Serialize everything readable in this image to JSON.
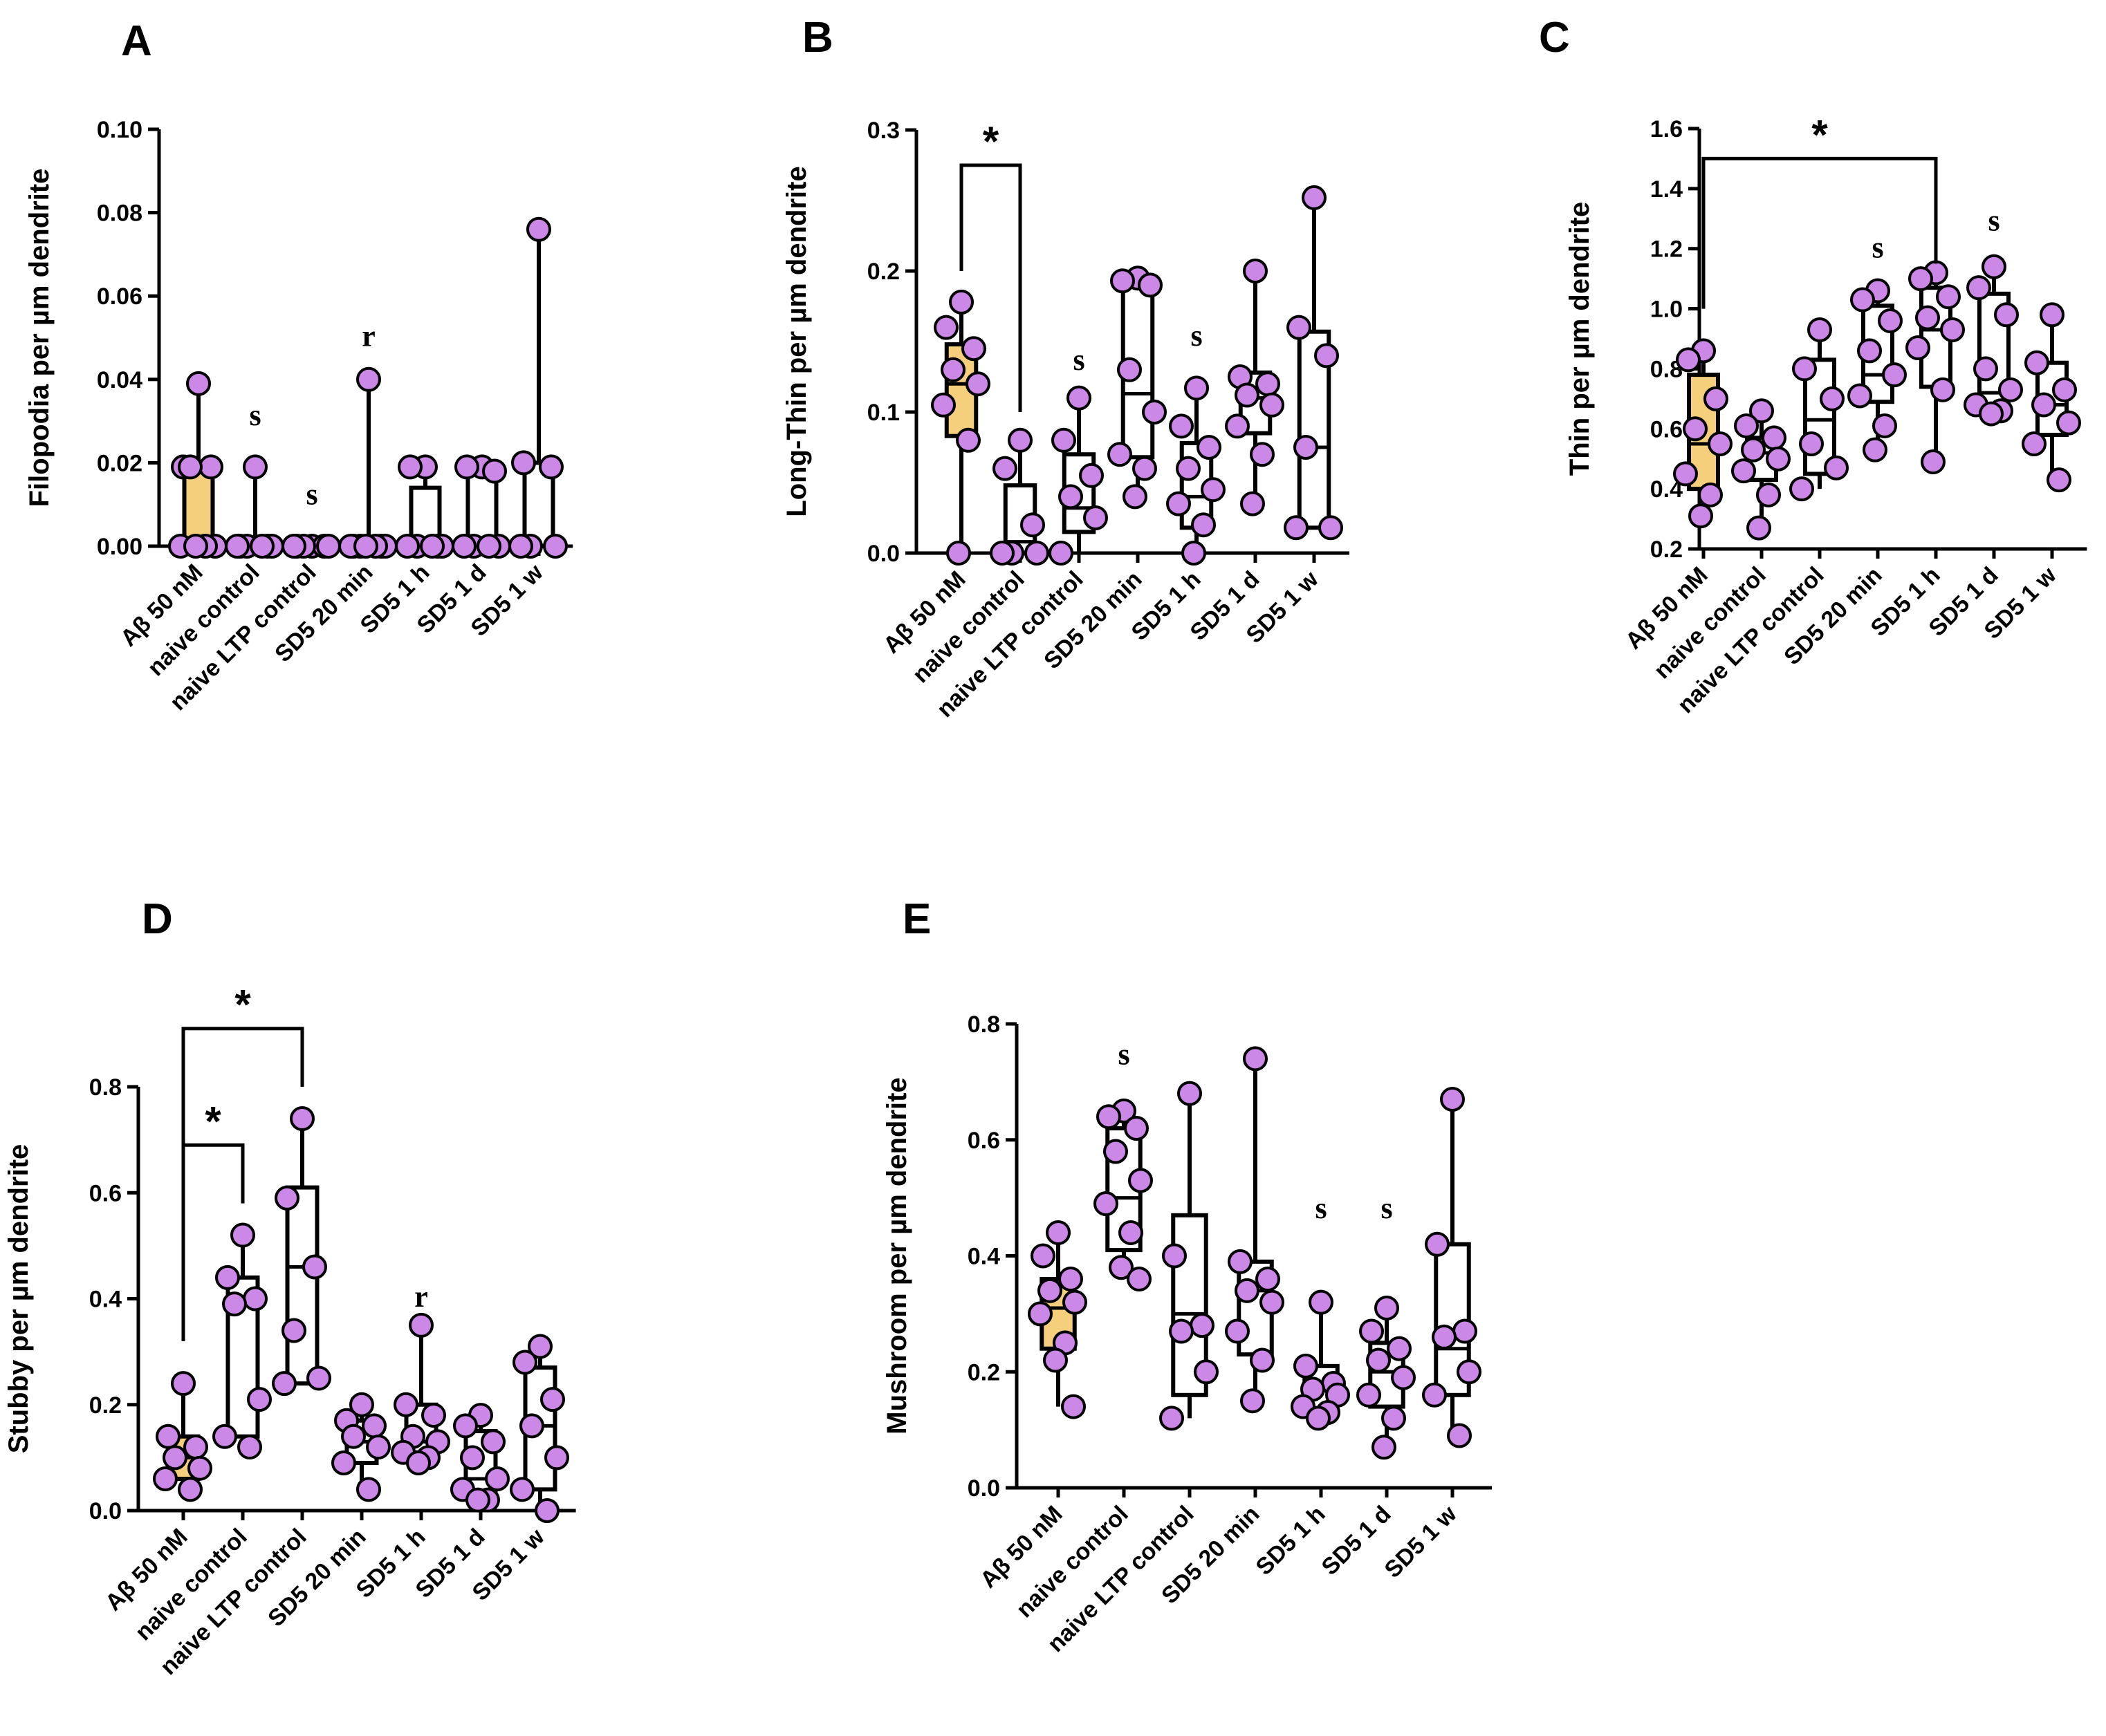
{
  "colors": {
    "highlight_box": "#f6cf7c",
    "box": "#ffffff",
    "dot_fill": "#cc88e6",
    "stroke": "#000000"
  },
  "chart_data": [
    {
      "panel": "A",
      "type": "box",
      "ylabel": "Filopodia per µm dendrite",
      "ylim": [
        0.0,
        0.1
      ],
      "yticks": [
        "0.00",
        "0.02",
        "0.04",
        "0.06",
        "0.08",
        "0.10"
      ],
      "categories": [
        "Aβ 50 nM",
        "naive control",
        "naive LTP control",
        "SD5 20 min",
        "SD5 1 h",
        "SD5 1 d",
        "SD5 1 w"
      ],
      "boxes": [
        {
          "min": 0,
          "q1": 0,
          "median": 0,
          "q3": 0.019,
          "max": 0.039
        },
        {
          "min": 0,
          "q1": 0,
          "median": 0,
          "q3": 0,
          "max": 0.019
        },
        {
          "min": 0,
          "q1": 0,
          "median": 0,
          "q3": 0,
          "max": 0
        },
        {
          "min": 0,
          "q1": 0,
          "median": 0,
          "q3": 0,
          "max": 0.04
        },
        {
          "min": 0,
          "q1": 0,
          "median": 0,
          "q3": 0.014,
          "max": 0.019
        },
        {
          "min": 0,
          "q1": 0,
          "median": 0,
          "q3": 0.018,
          "max": 0.019
        },
        {
          "min": 0,
          "q1": 0,
          "median": 0,
          "q3": 0.02,
          "max": 0.076
        }
      ],
      "points": [
        [
          0.039,
          0.019,
          0.019,
          0.019,
          0,
          0,
          0,
          0
        ],
        [
          0.019,
          0,
          0,
          0,
          0,
          0,
          0
        ],
        [
          0,
          0,
          0,
          0,
          0,
          0
        ],
        [
          0.04,
          0,
          0,
          0,
          0,
          0,
          0,
          0
        ],
        [
          0.019,
          0.019,
          0,
          0,
          0,
          0,
          0
        ],
        [
          0.019,
          0.019,
          0.018,
          0,
          0,
          0,
          0
        ],
        [
          0.076,
          0.02,
          0.019,
          0,
          0,
          0
        ]
      ],
      "annotations": [
        {
          "category": 1,
          "text": "s",
          "y": 0.029
        },
        {
          "category": 2,
          "text": "s",
          "y": 0.01
        },
        {
          "category": 3,
          "text": "r",
          "y": 0.048
        }
      ],
      "brackets": []
    },
    {
      "panel": "B",
      "type": "box",
      "ylabel": "Long-Thin per µm dendrite",
      "ylim": [
        0.0,
        0.3
      ],
      "yticks": [
        "0.0",
        "0.1",
        "0.2",
        "0.3"
      ],
      "categories": [
        "Aβ 50 nM",
        "naive control",
        "naive LTP control",
        "SD5 20 min",
        "SD5 1 h",
        "SD5 1 d",
        "SD5 1 w"
      ],
      "boxes": [
        {
          "min": 0,
          "q1": 0.083,
          "median": 0.12,
          "q3": 0.148,
          "max": 0.178
        },
        {
          "min": 0,
          "q1": 0,
          "median": 0.008,
          "q3": 0.048,
          "max": 0.08
        },
        {
          "min": 0,
          "q1": 0.015,
          "median": 0.032,
          "q3": 0.07,
          "max": 0.11
        },
        {
          "min": 0.04,
          "q1": 0.068,
          "median": 0.113,
          "q3": 0.192,
          "max": 0.195
        },
        {
          "min": 0,
          "q1": 0.018,
          "median": 0.04,
          "q3": 0.078,
          "max": 0.117
        },
        {
          "min": 0.035,
          "q1": 0.085,
          "median": 0.11,
          "q3": 0.128,
          "max": 0.2
        },
        {
          "min": 0.018,
          "q1": 0.018,
          "median": 0.075,
          "q3": 0.157,
          "max": 0.252
        }
      ],
      "points": [
        [
          0.178,
          0.16,
          0.145,
          0.13,
          0.12,
          0.105,
          0.08,
          0
        ],
        [
          0.08,
          0.06,
          0.02,
          0,
          0,
          0
        ],
        [
          0.11,
          0.08,
          0.055,
          0.04,
          0.025,
          0
        ],
        [
          0.195,
          0.193,
          0.19,
          0.13,
          0.1,
          0.07,
          0.06,
          0.04
        ],
        [
          0.117,
          0.09,
          0.075,
          0.06,
          0.045,
          0.035,
          0.02,
          0
        ],
        [
          0.2,
          0.125,
          0.12,
          0.112,
          0.105,
          0.09,
          0.07,
          0.035
        ],
        [
          0.252,
          0.16,
          0.14,
          0.075,
          0.018,
          0.018
        ]
      ],
      "annotations": [
        {
          "category": 2,
          "text": "s",
          "y": 0.13
        },
        {
          "category": 4,
          "text": "s",
          "y": 0.147
        }
      ],
      "brackets": [
        {
          "from": 0,
          "to": 1,
          "y": 0.275,
          "left_end": 0.2,
          "right_end": 0.1,
          "text": "*"
        }
      ]
    },
    {
      "panel": "C",
      "type": "box",
      "ylabel": "Thin per µm dendrite",
      "ylim": [
        0.2,
        1.6
      ],
      "yticks": [
        "0.2",
        "0.4",
        "0.6",
        "0.8",
        "1.0",
        "1.2",
        "1.4",
        "1.6"
      ],
      "categories": [
        "Aβ 50 nM",
        "naive control",
        "naive LTP control",
        "SD5 20 min",
        "SD5 1 h",
        "SD5 1 d",
        "SD5 1 w"
      ],
      "boxes": [
        {
          "min": 0.31,
          "q1": 0.4,
          "median": 0.55,
          "q3": 0.78,
          "max": 0.86
        },
        {
          "min": 0.27,
          "q1": 0.43,
          "median": 0.52,
          "q3": 0.57,
          "max": 0.66
        },
        {
          "min": 0.4,
          "q1": 0.45,
          "median": 0.63,
          "q3": 0.83,
          "max": 0.93
        },
        {
          "min": 0.53,
          "q1": 0.69,
          "median": 0.78,
          "q3": 1.01,
          "max": 1.06
        },
        {
          "min": 0.49,
          "q1": 0.74,
          "median": 0.93,
          "q3": 1.07,
          "max": 1.12
        },
        {
          "min": 0.65,
          "q1": 0.66,
          "median": 0.72,
          "q3": 1.05,
          "max": 1.14
        },
        {
          "min": 0.43,
          "q1": 0.58,
          "median": 0.68,
          "q3": 0.82,
          "max": 0.98
        }
      ],
      "points": [
        [
          0.86,
          0.83,
          0.7,
          0.6,
          0.55,
          0.45,
          0.38,
          0.31
        ],
        [
          0.66,
          0.61,
          0.57,
          0.53,
          0.5,
          0.46,
          0.38,
          0.27
        ],
        [
          0.93,
          0.8,
          0.7,
          0.55,
          0.47,
          0.4
        ],
        [
          1.06,
          1.03,
          0.96,
          0.86,
          0.78,
          0.71,
          0.61,
          0.53
        ],
        [
          1.12,
          1.1,
          1.04,
          0.97,
          0.93,
          0.87,
          0.73,
          0.49
        ],
        [
          1.14,
          1.07,
          0.98,
          0.8,
          0.73,
          0.68,
          0.66,
          0.65
        ],
        [
          0.98,
          0.82,
          0.73,
          0.68,
          0.62,
          0.55,
          0.43
        ]
      ],
      "annotations": [
        {
          "category": 3,
          "text": "s",
          "y": 1.17
        },
        {
          "category": 5,
          "text": "s",
          "y": 1.26
        }
      ],
      "brackets": [
        {
          "from": 0,
          "to": 4,
          "y": 1.5,
          "left_end": 1.0,
          "right_end": 1.15,
          "text": "*"
        }
      ]
    },
    {
      "panel": "D",
      "type": "box",
      "ylabel": "Stubby per µm dendrite",
      "ylim": [
        0.0,
        0.8
      ],
      "yticks": [
        "0.0",
        "0.2",
        "0.4",
        "0.6",
        "0.8"
      ],
      "categories": [
        "Aβ 50 nM",
        "naive control",
        "naive LTP control",
        "SD5 20 min",
        "SD5 1 h",
        "SD5 1 d",
        "SD5 1 w"
      ],
      "boxes": [
        {
          "min": 0.04,
          "q1": 0.06,
          "median": 0.1,
          "q3": 0.14,
          "max": 0.24
        },
        {
          "min": 0.12,
          "q1": 0.14,
          "median": 0.39,
          "q3": 0.44,
          "max": 0.52
        },
        {
          "min": 0.24,
          "q1": 0.24,
          "median": 0.46,
          "q3": 0.61,
          "max": 0.74
        },
        {
          "min": 0.04,
          "q1": 0.09,
          "median": 0.13,
          "q3": 0.17,
          "max": 0.2
        },
        {
          "min": 0.09,
          "q1": 0.11,
          "median": 0.13,
          "q3": 0.2,
          "max": 0.35
        },
        {
          "min": 0.02,
          "q1": 0.03,
          "median": 0.06,
          "q3": 0.15,
          "max": 0.18
        },
        {
          "min": 0,
          "q1": 0.04,
          "median": 0.16,
          "q3": 0.27,
          "max": 0.31
        }
      ],
      "points": [
        [
          0.24,
          0.14,
          0.12,
          0.1,
          0.08,
          0.06,
          0.04
        ],
        [
          0.52,
          0.44,
          0.4,
          0.39,
          0.21,
          0.14,
          0.12
        ],
        [
          0.74,
          0.59,
          0.46,
          0.34,
          0.25,
          0.24
        ],
        [
          0.2,
          0.17,
          0.16,
          0.14,
          0.12,
          0.09,
          0.04
        ],
        [
          0.35,
          0.2,
          0.18,
          0.14,
          0.13,
          0.11,
          0.1,
          0.09
        ],
        [
          0.18,
          0.16,
          0.13,
          0.1,
          0.06,
          0.04,
          0.02,
          0.02
        ],
        [
          0.31,
          0.28,
          0.21,
          0.16,
          0.1,
          0.04,
          0
        ]
      ],
      "annotations": [
        {
          "category": 4,
          "text": "r",
          "y": 0.385
        }
      ],
      "brackets": [
        {
          "from": 0,
          "to": 1,
          "y": 0.69,
          "left_end": 0.32,
          "right_end": 0.58,
          "text": "*"
        },
        {
          "from": 0,
          "to": 2,
          "y": 0.91,
          "left_end": 0.32,
          "right_end": 0.8,
          "text": "*"
        }
      ]
    },
    {
      "panel": "E",
      "type": "box",
      "ylabel": "Mushroom per µm dendrite",
      "ylim": [
        0.0,
        0.8
      ],
      "yticks": [
        "0.0",
        "0.2",
        "0.4",
        "0.6",
        "0.8"
      ],
      "categories": [
        "Aβ 50 nM",
        "naive control",
        "naive LTP control",
        "SD5 20 min",
        "SD5 1 h",
        "SD5 1 d",
        "SD5 1 w"
      ],
      "boxes": [
        {
          "min": 0.14,
          "q1": 0.24,
          "median": 0.31,
          "q3": 0.36,
          "max": 0.44
        },
        {
          "min": 0.36,
          "q1": 0.41,
          "median": 0.5,
          "q3": 0.62,
          "max": 0.65
        },
        {
          "min": 0.12,
          "q1": 0.16,
          "median": 0.3,
          "q3": 0.47,
          "max": 0.68
        },
        {
          "min": 0.15,
          "q1": 0.23,
          "median": 0.34,
          "q3": 0.39,
          "max": 0.74
        },
        {
          "min": 0.12,
          "q1": 0.13,
          "median": 0.17,
          "q3": 0.21,
          "max": 0.32
        },
        {
          "min": 0.07,
          "q1": 0.14,
          "median": 0.2,
          "q3": 0.25,
          "max": 0.31
        },
        {
          "min": 0.09,
          "q1": 0.16,
          "median": 0.24,
          "q3": 0.42,
          "max": 0.67
        }
      ],
      "points": [
        [
          0.44,
          0.4,
          0.36,
          0.34,
          0.32,
          0.3,
          0.25,
          0.22,
          0.14
        ],
        [
          0.65,
          0.64,
          0.62,
          0.58,
          0.53,
          0.49,
          0.44,
          0.38,
          0.36
        ],
        [
          0.68,
          0.4,
          0.28,
          0.27,
          0.2,
          0.12
        ],
        [
          0.74,
          0.39,
          0.36,
          0.34,
          0.32,
          0.27,
          0.22,
          0.15
        ],
        [
          0.32,
          0.21,
          0.18,
          0.17,
          0.16,
          0.14,
          0.13,
          0.12
        ],
        [
          0.31,
          0.27,
          0.24,
          0.22,
          0.19,
          0.16,
          0.12,
          0.07
        ],
        [
          0.67,
          0.42,
          0.27,
          0.26,
          0.2,
          0.16,
          0.09
        ]
      ],
      "annotations": [
        {
          "category": 1,
          "text": "s",
          "y": 0.73
        },
        {
          "category": 4,
          "text": "s",
          "y": 0.465
        },
        {
          "category": 5,
          "text": "s",
          "y": 0.465
        }
      ],
      "brackets": []
    }
  ]
}
